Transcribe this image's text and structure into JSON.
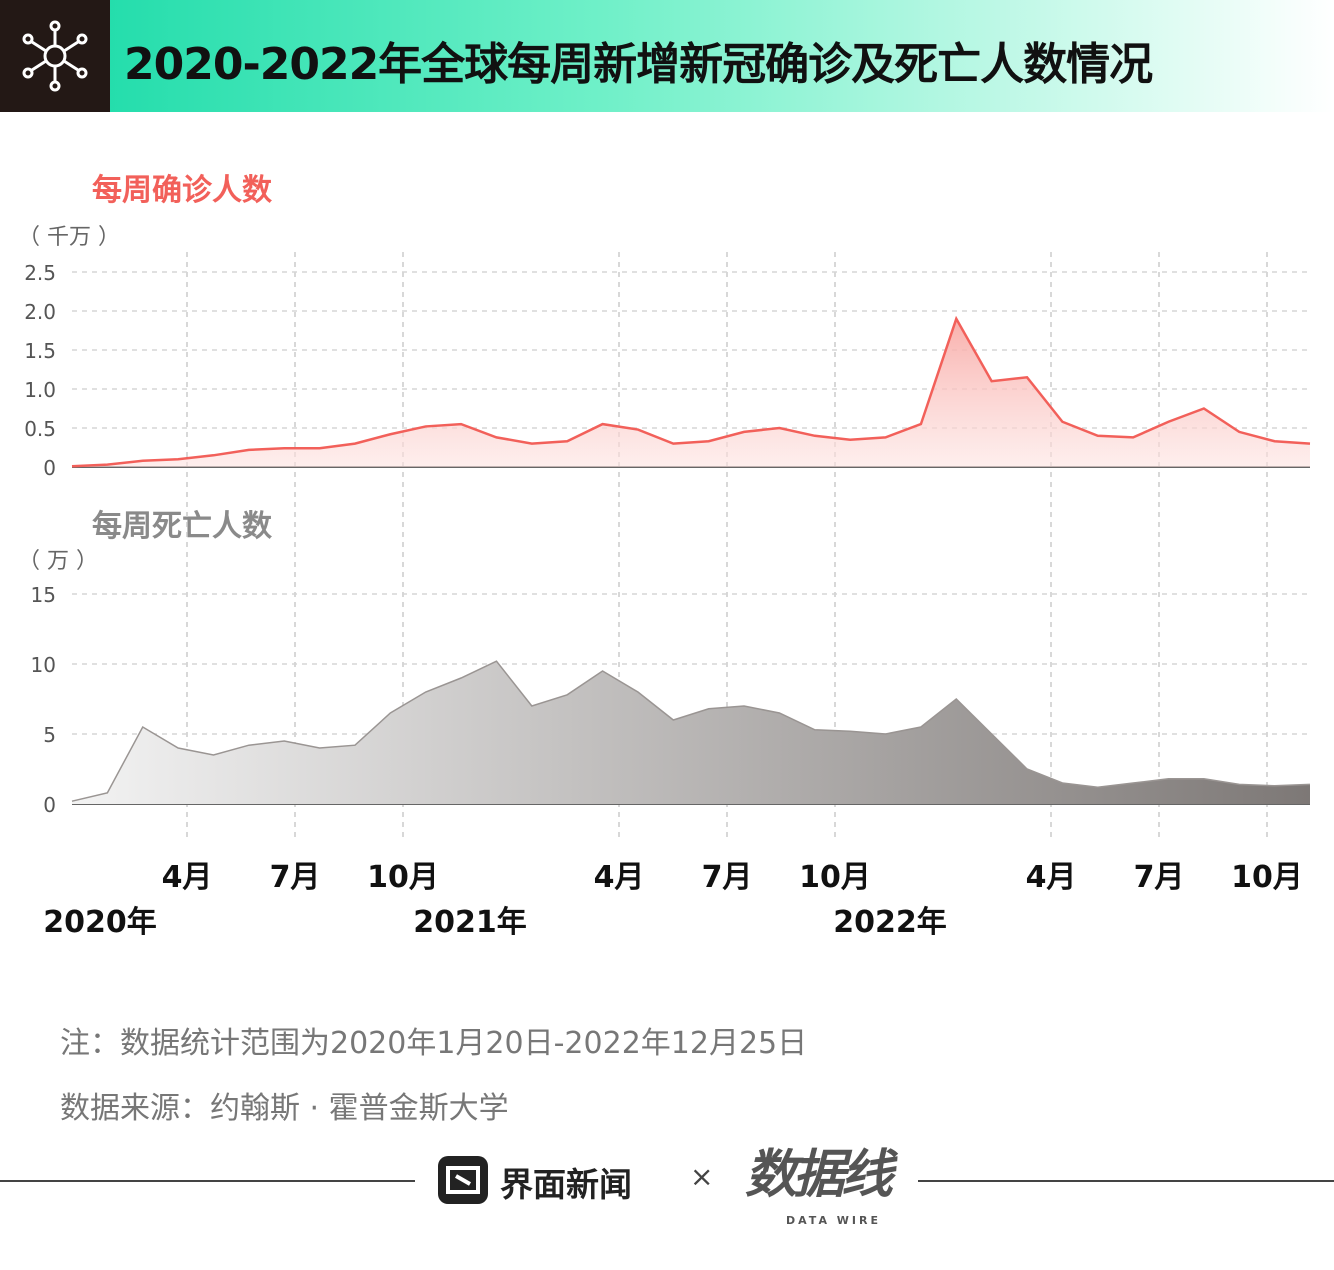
{
  "title": "2020-2022年全球每周新增新冠确诊及死亡人数情况",
  "chart_data": [
    {
      "type": "area",
      "title": "每周确诊人数",
      "unit": "（ 千万 ）",
      "ylim": [
        0,
        2.5
      ],
      "yticks": [
        "0",
        "0.5",
        "1.0",
        "1.5",
        "2.0",
        "2.5"
      ],
      "color": "#f2605a",
      "x_month_index": [
        0,
        1,
        2,
        3,
        4,
        5,
        6,
        7,
        8,
        9,
        10,
        11,
        12,
        13,
        14,
        15,
        16,
        17,
        18,
        19,
        20,
        21,
        22,
        23,
        24,
        25,
        26,
        27,
        28,
        29,
        30,
        31,
        32,
        33,
        34,
        35
      ],
      "values": [
        0.01,
        0.03,
        0.08,
        0.1,
        0.15,
        0.22,
        0.24,
        0.24,
        0.3,
        0.42,
        0.52,
        0.55,
        0.38,
        0.3,
        0.33,
        0.55,
        0.48,
        0.3,
        0.33,
        0.45,
        0.5,
        0.4,
        0.35,
        0.38,
        0.55,
        1.9,
        1.1,
        1.15,
        0.58,
        0.4,
        0.38,
        0.58,
        0.75,
        0.45,
        0.33,
        0.3
      ]
    },
    {
      "type": "area",
      "title": "每周死亡人数",
      "unit": "（ 万 ）",
      "ylim": [
        0,
        15
      ],
      "yticks": [
        "0",
        "5",
        "10",
        "15"
      ],
      "color": "#8a8583",
      "x_month_index": [
        0,
        1,
        2,
        3,
        4,
        5,
        6,
        7,
        8,
        9,
        10,
        11,
        12,
        13,
        14,
        15,
        16,
        17,
        18,
        19,
        20,
        21,
        22,
        23,
        24,
        25,
        26,
        27,
        28,
        29,
        30,
        31,
        32,
        33,
        34,
        35
      ],
      "values": [
        0.2,
        0.8,
        5.5,
        4.0,
        3.5,
        4.2,
        4.5,
        4.0,
        4.2,
        6.5,
        8.0,
        9.0,
        10.2,
        7.0,
        7.8,
        9.5,
        8.0,
        6.0,
        6.8,
        7.0,
        6.5,
        5.3,
        5.2,
        5.0,
        5.5,
        7.5,
        5.0,
        2.5,
        1.5,
        1.2,
        1.5,
        1.8,
        1.8,
        1.4,
        1.3,
        1.4
      ]
    }
  ],
  "x_axis": {
    "month_labels": [
      "4月",
      "7月",
      "10月",
      "4月",
      "7月",
      "10月",
      "4月",
      "7月",
      "10月"
    ],
    "year_labels": [
      "2020年",
      "2021年",
      "2022年"
    ]
  },
  "notes": {
    "range": "注：数据统计范围为2020年1月20日-2022年12月25日",
    "source": "数据来源：约翰斯 · 霍普金斯大学"
  },
  "footer": {
    "brand_a": "界面新闻",
    "times": "×",
    "brand_b": "数据线",
    "brand_b_sub": "DATA WIRE"
  },
  "colors": {
    "accent": "#14d9a6",
    "confirmed": "#f2605a",
    "deaths": "#8a8583"
  }
}
